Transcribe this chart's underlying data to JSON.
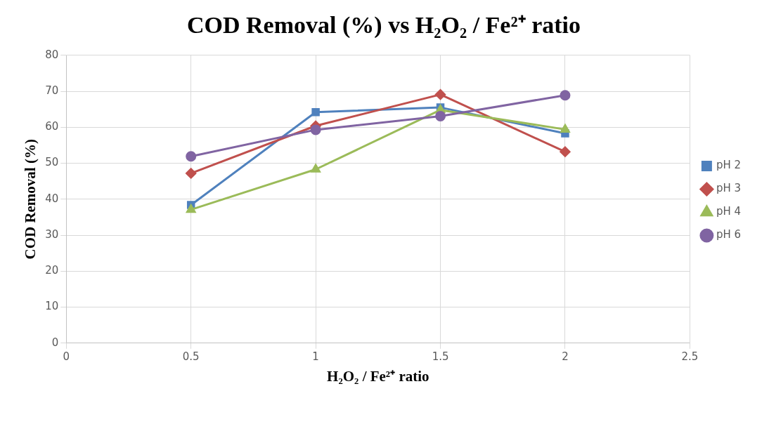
{
  "chart_data": {
    "type": "line",
    "title": "COD Removal (%) vs H₂O₂ / Fe²⁺ ratio",
    "xlabel": "H₂O₂ / Fe²⁺ ratio",
    "ylabel": "COD Removal (%)",
    "x": [
      0.5,
      1,
      1.5,
      2
    ],
    "xlim": [
      0,
      2.5
    ],
    "xticks": [
      0,
      0.5,
      1,
      1.5,
      2,
      2.5
    ],
    "ylim": [
      0,
      80
    ],
    "yticks": [
      0,
      10,
      20,
      30,
      40,
      50,
      60,
      70,
      80
    ],
    "grid": true,
    "legend": "right",
    "series": [
      {
        "name": "pH 2",
        "color": "#4f81bd",
        "marker": "square",
        "values": [
          38.4,
          64.2,
          65.5,
          58.3
        ]
      },
      {
        "name": "pH 3",
        "color": "#c0504d",
        "marker": "diamond",
        "values": [
          47.2,
          60.4,
          69.1,
          53.2
        ]
      },
      {
        "name": "pH 4",
        "color": "#9bbb59",
        "marker": "triangle",
        "values": [
          37.1,
          48.3,
          64.8,
          59.4
        ]
      },
      {
        "name": "pH 6",
        "color": "#8064a2",
        "marker": "circle",
        "values": [
          51.9,
          59.3,
          63.1,
          68.9
        ]
      }
    ]
  }
}
